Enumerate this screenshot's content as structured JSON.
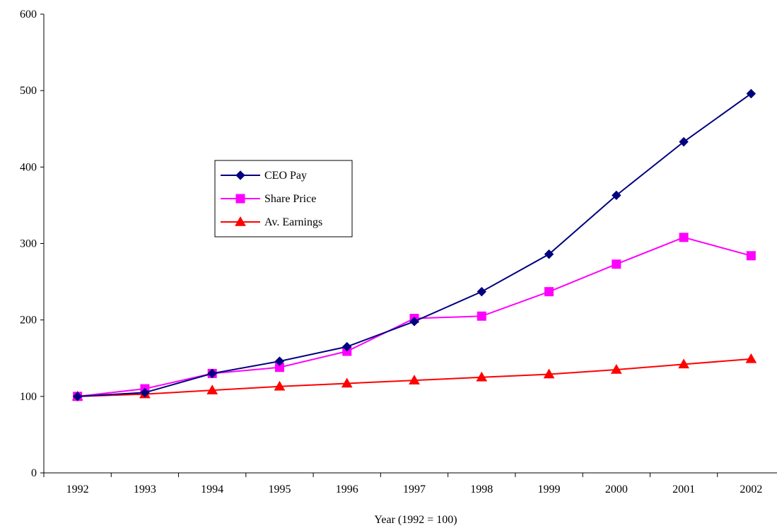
{
  "chart_data": {
    "type": "line",
    "title": "",
    "xlabel": "Year (1992 = 100)",
    "ylabel": "",
    "categories": [
      "1992",
      "1993",
      "1994",
      "1995",
      "1996",
      "1997",
      "1998",
      "1999",
      "2000",
      "2001",
      "2002"
    ],
    "ylim": [
      0,
      600
    ],
    "yticks": [
      "0",
      "100",
      "200",
      "300",
      "400",
      "500",
      "600"
    ],
    "grid": false,
    "legend_position": "center-left",
    "series": [
      {
        "name": "CEO Pay",
        "marker": "diamond",
        "color": "#000080",
        "values": [
          100,
          105,
          130,
          146,
          165,
          198,
          237,
          286,
          363,
          433,
          496
        ]
      },
      {
        "name": "Share Price",
        "marker": "square",
        "color": "#FF00FF",
        "values": [
          100,
          110,
          130,
          138,
          159,
          202,
          205,
          237,
          273,
          308,
          284
        ]
      },
      {
        "name": "Av. Earnings",
        "marker": "triangle",
        "color": "#FF0000",
        "values": [
          100,
          103,
          108,
          113,
          117,
          121,
          125,
          129,
          135,
          142,
          149
        ]
      }
    ]
  }
}
